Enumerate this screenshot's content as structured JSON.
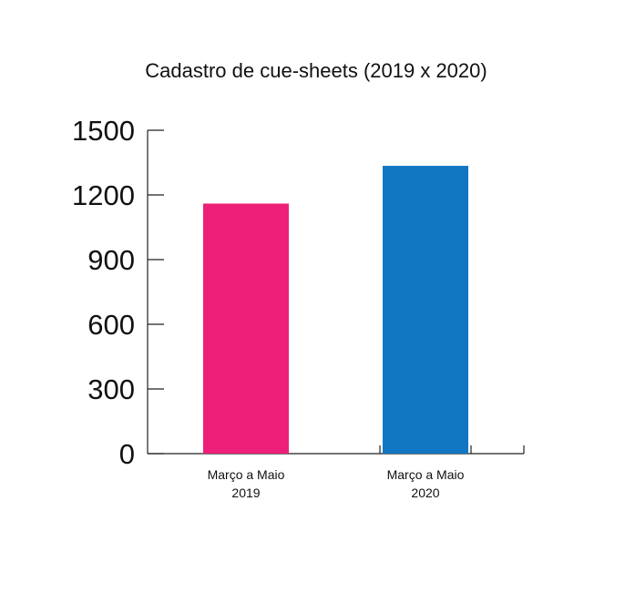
{
  "chart_data": {
    "type": "bar",
    "title": "Cadastro de cue-sheets (2019 x 2020)",
    "xlabel": "",
    "ylabel": "",
    "ylim": [
      0,
      1500
    ],
    "yticks": [
      "0",
      "300",
      "600",
      "900",
      "1200",
      "1500"
    ],
    "ytick_values": [
      0,
      300,
      600,
      900,
      1200,
      1500
    ],
    "categories": [
      [
        "Março a Maio",
        "2019"
      ],
      [
        "Março a Maio",
        "2020"
      ]
    ],
    "values": [
      1160,
      1335
    ],
    "colors": [
      "#ed1f78",
      "#1177c2"
    ],
    "grid": false,
    "legend": "none"
  }
}
